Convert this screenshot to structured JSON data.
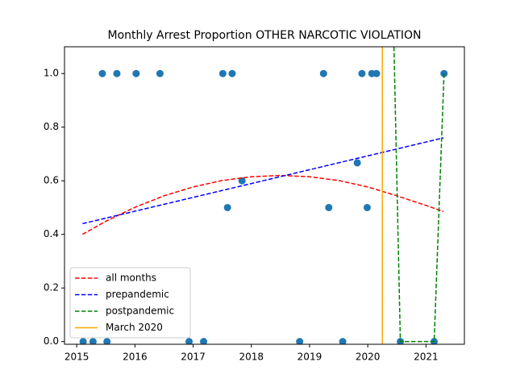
{
  "chart_data": {
    "type": "scatter",
    "title": "Monthly Arrest Proportion OTHER NARCOTIC VIOLATION",
    "xlim": [
      2014.79,
      2021.66
    ],
    "ylim": [
      -0.01,
      1.1
    ],
    "xticks": [
      2015,
      2016,
      2017,
      2018,
      2019,
      2020,
      2021
    ],
    "yticks": [
      {
        "value": 0,
        "label": "0.0"
      },
      0.2,
      0.4,
      0.6,
      0.8,
      {
        "value": 1,
        "label": "1.0"
      }
    ],
    "legend": "lower left",
    "series": [
      {
        "type": "scatter",
        "color": "#1f77b4",
        "x": [
          2015.11,
          2015.28,
          2015.44,
          2015.52,
          2015.69,
          2016.02,
          2016.43,
          2016.93,
          2017.18,
          2017.51,
          2017.59,
          2017.67,
          2017.84,
          2018.83,
          2019.24,
          2019.33,
          2019.57,
          2019.82,
          2019.9,
          2019.99,
          2020.07,
          2020.15,
          2020.56,
          2021.14,
          2021.31
        ],
        "values": [
          0,
          0,
          1,
          0,
          1,
          1,
          1,
          0,
          0,
          1,
          0.5,
          1,
          0.6,
          0,
          1,
          0.5,
          0,
          0.667,
          1,
          0.5,
          1,
          1,
          0,
          0,
          1
        ]
      },
      {
        "type": "line",
        "name": "all months",
        "color": "#ff0000",
        "style": "dashed",
        "x": [
          2015.1,
          2015.5,
          2016,
          2016.5,
          2017,
          2017.5,
          2018,
          2018.5,
          2019,
          2019.5,
          2020,
          2020.5,
          2021,
          2021.3
        ],
        "values": [
          0.4,
          0.449,
          0.501,
          0.544,
          0.577,
          0.601,
          0.615,
          0.62,
          0.615,
          0.601,
          0.577,
          0.544,
          0.508,
          0.485
        ]
      },
      {
        "type": "line",
        "name": "prepandemic",
        "color": "#0000ff",
        "style": "dashed",
        "x": [
          2015.1,
          2021.3
        ],
        "values": [
          0.44,
          0.76
        ]
      },
      {
        "type": "line",
        "name": "postpandemic",
        "color": "#008000",
        "style": "dashed",
        "x": [
          2020.45,
          2020.56,
          2021.14,
          2021.31
        ],
        "values": [
          1.1,
          0,
          0,
          1
        ]
      },
      {
        "type": "vline",
        "name": "March 2020",
        "color": "#ffa500",
        "x": 2020.25
      }
    ]
  }
}
